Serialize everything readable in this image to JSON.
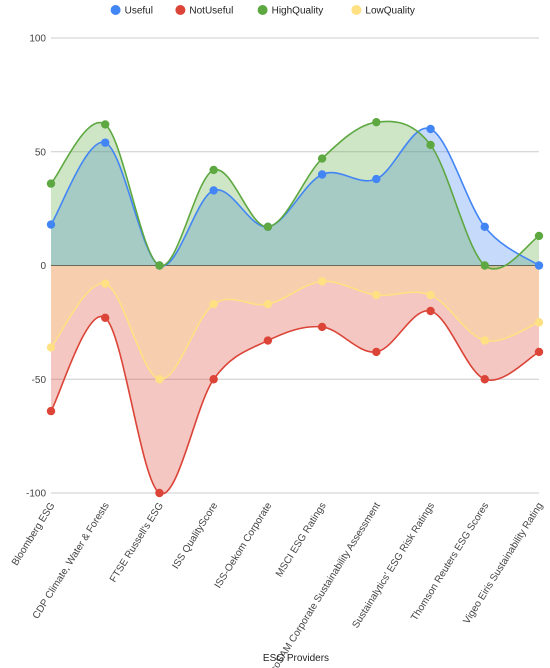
{
  "chart_data": {
    "type": "area",
    "xlabel": "ESG Providers",
    "ylabel": "",
    "ylim": [
      -100,
      100
    ],
    "yticks": [
      -100,
      -50,
      0,
      50,
      100
    ],
    "grid": true,
    "smooth": true,
    "legend_position": "top-center",
    "categories": [
      "Bloomberg ESG",
      "CDP Climate, Water & Forests",
      "FTSE Russell's ESG",
      "ISS QualityScore",
      "ISS-Oekom Corporate",
      "MSCI ESG Ratings",
      "RobecoSAM Corporate Sustainability Assessment",
      "Sustainalytics' ESG Risk Ratings",
      "Thomson Reuters ESG Scores",
      "Vigeo Eiris Sustainability Rating"
    ],
    "series": [
      {
        "name": "Useful",
        "color": "#4285f4",
        "values": [
          18,
          54,
          0,
          33,
          17,
          40,
          38,
          60,
          17,
          0
        ]
      },
      {
        "name": "NotUseful",
        "color": "#db4437",
        "values": [
          -64,
          -23,
          -100,
          -50,
          -33,
          -27,
          -38,
          -20,
          -50,
          -38
        ]
      },
      {
        "name": "HighQuality",
        "color": "#5ea841",
        "values": [
          36,
          62,
          0,
          42,
          17,
          47,
          63,
          53,
          0,
          13
        ]
      },
      {
        "name": "LowQuality",
        "color": "#ffe082",
        "values": [
          -36,
          -8,
          -50,
          -17,
          -17,
          -7,
          -13,
          -13,
          -33,
          -25
        ]
      }
    ]
  }
}
